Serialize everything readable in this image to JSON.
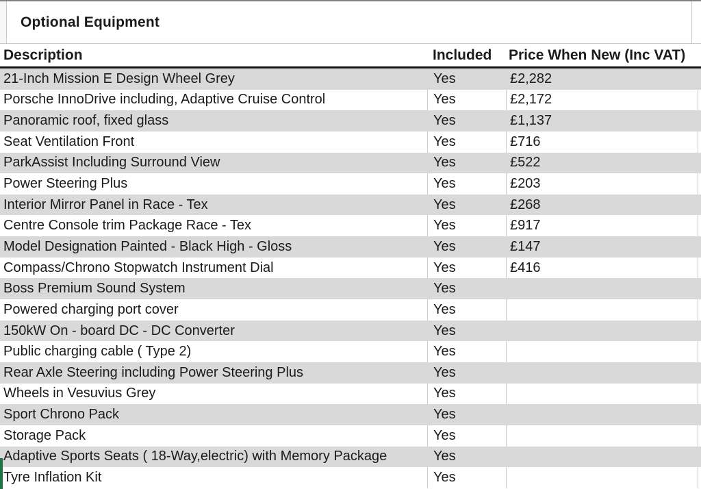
{
  "title": "Optional Equipment",
  "table": {
    "columns": [
      "Description",
      "Included",
      "Price When New (Inc VAT)"
    ],
    "rows": [
      {
        "description": "21-Inch Mission E Design Wheel Grey",
        "included": "Yes",
        "price": "£2,282"
      },
      {
        "description": "Porsche InnoDrive including, Adaptive Cruise Control",
        "included": "Yes",
        "price": "£2,172"
      },
      {
        "description": "Panoramic roof, fixed glass",
        "included": "Yes",
        "price": "£1,137"
      },
      {
        "description": "Seat Ventilation Front",
        "included": "Yes",
        "price": "£716"
      },
      {
        "description": "ParkAssist Including Surround View",
        "included": "Yes",
        "price": "£522"
      },
      {
        "description": "Power Steering Plus",
        "included": "Yes",
        "price": "£203"
      },
      {
        "description": "Interior Mirror Panel in Race - Tex",
        "included": "Yes",
        "price": "£268"
      },
      {
        "description": "Centre Console trim Package Race - Tex",
        "included": "Yes",
        "price": "£917"
      },
      {
        "description": "Model Designation Painted - Black High - Gloss",
        "included": "Yes",
        "price": "£147"
      },
      {
        "description": "Compass/Chrono Stopwatch Instrument Dial",
        "included": "Yes",
        "price": "£416"
      },
      {
        "description": "Boss Premium Sound System",
        "included": "Yes",
        "price": ""
      },
      {
        "description": "Powered charging port cover",
        "included": "Yes",
        "price": ""
      },
      {
        "description": "150kW On - board DC - DC Converter",
        "included": "Yes",
        "price": ""
      },
      {
        "description": "Public charging cable ( Type 2)",
        "included": "Yes",
        "price": ""
      },
      {
        "description": "Rear Axle Steering including Power Steering Plus",
        "included": "Yes",
        "price": ""
      },
      {
        "description": "Wheels in Vesuvius Grey",
        "included": "Yes",
        "price": ""
      },
      {
        "description": "Sport Chrono Pack",
        "included": "Yes",
        "price": ""
      },
      {
        "description": "Storage Pack",
        "included": "Yes",
        "price": ""
      },
      {
        "description": "Adaptive Sports Seats ( 18-Way,electric) with Memory Package",
        "included": "Yes",
        "price": ""
      },
      {
        "description": "Tyre Inflation Kit",
        "included": "Yes",
        "price": ""
      }
    ]
  },
  "colors": {
    "row_alt_fill": "#d9d9d9",
    "gridline": "#cccccc",
    "header_border": "#141414",
    "top_line": "#828282",
    "selection_green": "#217346",
    "text": "#1b1b1b"
  }
}
